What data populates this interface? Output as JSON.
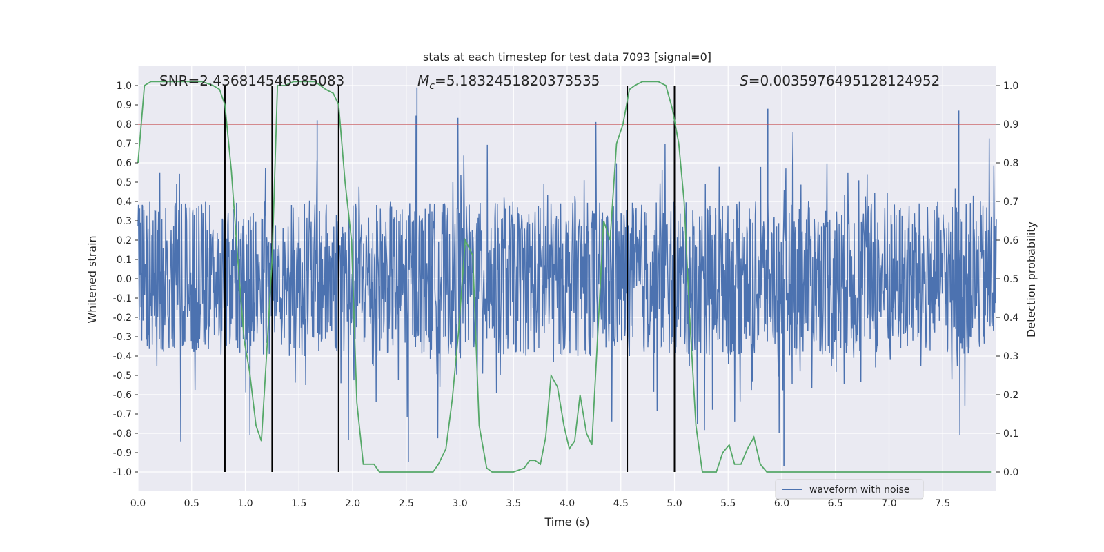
{
  "chart_data": {
    "type": "line",
    "title": "stats at each timestep for test data 7093 [signal=0]",
    "xlabel": "Time (s)",
    "ylabel_left": "Whitened strain",
    "ylabel_right": "Detection probability",
    "xlim": [
      0,
      8
    ],
    "ylim_left": [
      -1.1,
      1.1
    ],
    "ylim_right": [
      -0.05,
      1.05
    ],
    "x_ticks": [
      0.0,
      0.5,
      1.0,
      1.5,
      2.0,
      2.5,
      3.0,
      3.5,
      4.0,
      4.5,
      5.0,
      5.5,
      6.0,
      6.5,
      7.0,
      7.5
    ],
    "x_tick_labels": [
      "0.0",
      "0.5",
      "1.0",
      "1.5",
      "2.0",
      "2.5",
      "3.0",
      "3.5",
      "4.0",
      "4.5",
      "5.0",
      "5.5",
      "6.0",
      "6.5",
      "7.0",
      "7.5"
    ],
    "y_left_ticks": [
      1.0,
      0.9,
      0.8,
      0.7,
      0.6,
      0.5,
      0.4,
      0.3,
      0.2,
      0.1,
      0.0,
      -0.1,
      -0.2,
      -0.3,
      -0.4,
      -0.5,
      -0.6,
      -0.7,
      -0.8,
      -0.9,
      -1.0
    ],
    "y_left_tick_labels": [
      "1.0",
      "0.9",
      "0.8",
      "0.7",
      "0.6",
      "0.5",
      "0.4",
      "0.3",
      "0.2",
      "0.1",
      "0.0",
      "-0.1",
      "-0.2",
      "-0.3",
      "-0.4",
      "-0.5",
      "-0.6",
      "-0.7",
      "-0.8",
      "-0.9",
      "-1.0"
    ],
    "y_right_ticks": [
      1.0,
      0.9,
      0.8,
      0.7,
      0.6,
      0.5,
      0.4,
      0.3,
      0.2,
      0.1,
      0.0
    ],
    "y_right_tick_labels": [
      "1.0",
      "0.9",
      "0.8",
      "0.7",
      "0.6",
      "0.5",
      "0.4",
      "0.3",
      "0.2",
      "0.1",
      "0.0"
    ],
    "annotations": {
      "snr": "SNR=2.436814546585083",
      "mc_symbol": "M",
      "mc_sub": "c",
      "mc_value": "=5.1832451820373535",
      "s_symbol": "S",
      "s_value": "=0.0035976495128124952"
    },
    "legend": {
      "entries": [
        "waveform with noise"
      ],
      "placement": "lower-center-right"
    },
    "threshold": {
      "axis": "right",
      "value": 0.9,
      "color": "#c44e52"
    },
    "vertical_lines_x": [
      0.81,
      1.25,
      1.87,
      4.56,
      5.0
    ],
    "detection_probability": {
      "axis": "right",
      "color": "#55a868",
      "x": [
        0.0,
        0.06,
        0.12,
        0.2,
        0.3,
        0.4,
        0.5,
        0.6,
        0.7,
        0.76,
        0.81,
        0.87,
        0.93,
        0.99,
        1.04,
        1.1,
        1.15,
        1.2,
        1.25,
        1.3,
        1.37,
        1.45,
        1.55,
        1.65,
        1.75,
        1.82,
        1.87,
        1.93,
        1.99,
        2.04,
        2.1,
        2.2,
        2.25,
        2.3,
        2.4,
        2.5,
        2.6,
        2.7,
        2.75,
        2.8,
        2.87,
        2.93,
        2.99,
        3.05,
        3.12,
        3.18,
        3.25,
        3.3,
        3.4,
        3.5,
        3.6,
        3.65,
        3.7,
        3.75,
        3.8,
        3.85,
        3.91,
        3.97,
        4.02,
        4.07,
        4.12,
        4.18,
        4.23,
        4.28,
        4.34,
        4.4,
        4.46,
        4.52,
        4.58,
        4.63,
        4.7,
        4.77,
        4.85,
        4.92,
        4.98,
        5.04,
        5.09,
        5.14,
        5.2,
        5.26,
        5.32,
        5.39,
        5.45,
        5.51,
        5.56,
        5.62,
        5.68,
        5.74,
        5.8,
        5.86,
        5.92,
        6.0,
        6.5,
        7.0,
        7.5,
        7.8,
        7.95
      ],
      "y": [
        0.8,
        1.0,
        1.01,
        1.01,
        1.01,
        1.01,
        1.01,
        1.01,
        1.0,
        0.99,
        0.95,
        0.78,
        0.55,
        0.34,
        0.26,
        0.12,
        0.08,
        0.31,
        0.55,
        1.0,
        1.0,
        1.01,
        1.01,
        1.01,
        0.99,
        0.98,
        0.95,
        0.75,
        0.6,
        0.18,
        0.02,
        0.02,
        0.0,
        0.0,
        0.0,
        0.0,
        0.0,
        0.0,
        0.0,
        0.02,
        0.06,
        0.19,
        0.37,
        0.6,
        0.56,
        0.12,
        0.01,
        0.0,
        0.0,
        0.0,
        0.01,
        0.03,
        0.03,
        0.02,
        0.09,
        0.25,
        0.22,
        0.12,
        0.06,
        0.08,
        0.2,
        0.1,
        0.07,
        0.33,
        0.65,
        0.6,
        0.85,
        0.9,
        0.99,
        1.0,
        1.01,
        1.01,
        1.01,
        1.0,
        0.94,
        0.85,
        0.7,
        0.41,
        0.12,
        0.0,
        0.0,
        0.0,
        0.05,
        0.07,
        0.02,
        0.02,
        0.06,
        0.09,
        0.02,
        0.0,
        0.0,
        0.0,
        0.0,
        0.0,
        0.0,
        0.0,
        0.0
      ]
    },
    "strain_series": {
      "name": "waveform with noise",
      "axis": "left",
      "color": "#4c72b0",
      "x_range": [
        0.0,
        8.0
      ],
      "samples": 2048,
      "envelope": [
        -0.4,
        0.4
      ],
      "spike_extremes": [
        0.99,
        -0.97
      ]
    }
  }
}
